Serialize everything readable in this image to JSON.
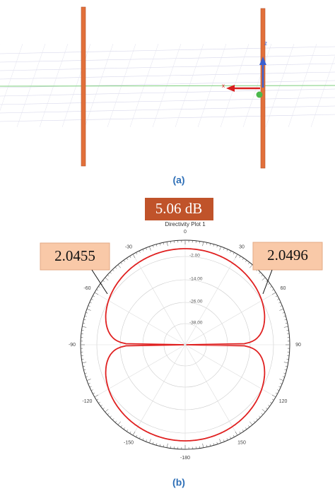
{
  "panel_a": {
    "label": "(a)",
    "axis_labels": [
      "z",
      "x"
    ]
  },
  "panel_b": {
    "label": "(b)",
    "badge": "5.06 dB",
    "plot_title": "Directivity Plot 1",
    "callouts": [
      "2.0455",
      "2.0496"
    ],
    "angle_labels": [
      "0",
      "-30",
      "30",
      "-60",
      "60",
      "-90",
      "90",
      "-120",
      "120",
      "-150",
      "150",
      "-180"
    ],
    "radial_labels": [
      "-2.00",
      "-14.00",
      "-26.00",
      "-38.00"
    ]
  }
}
